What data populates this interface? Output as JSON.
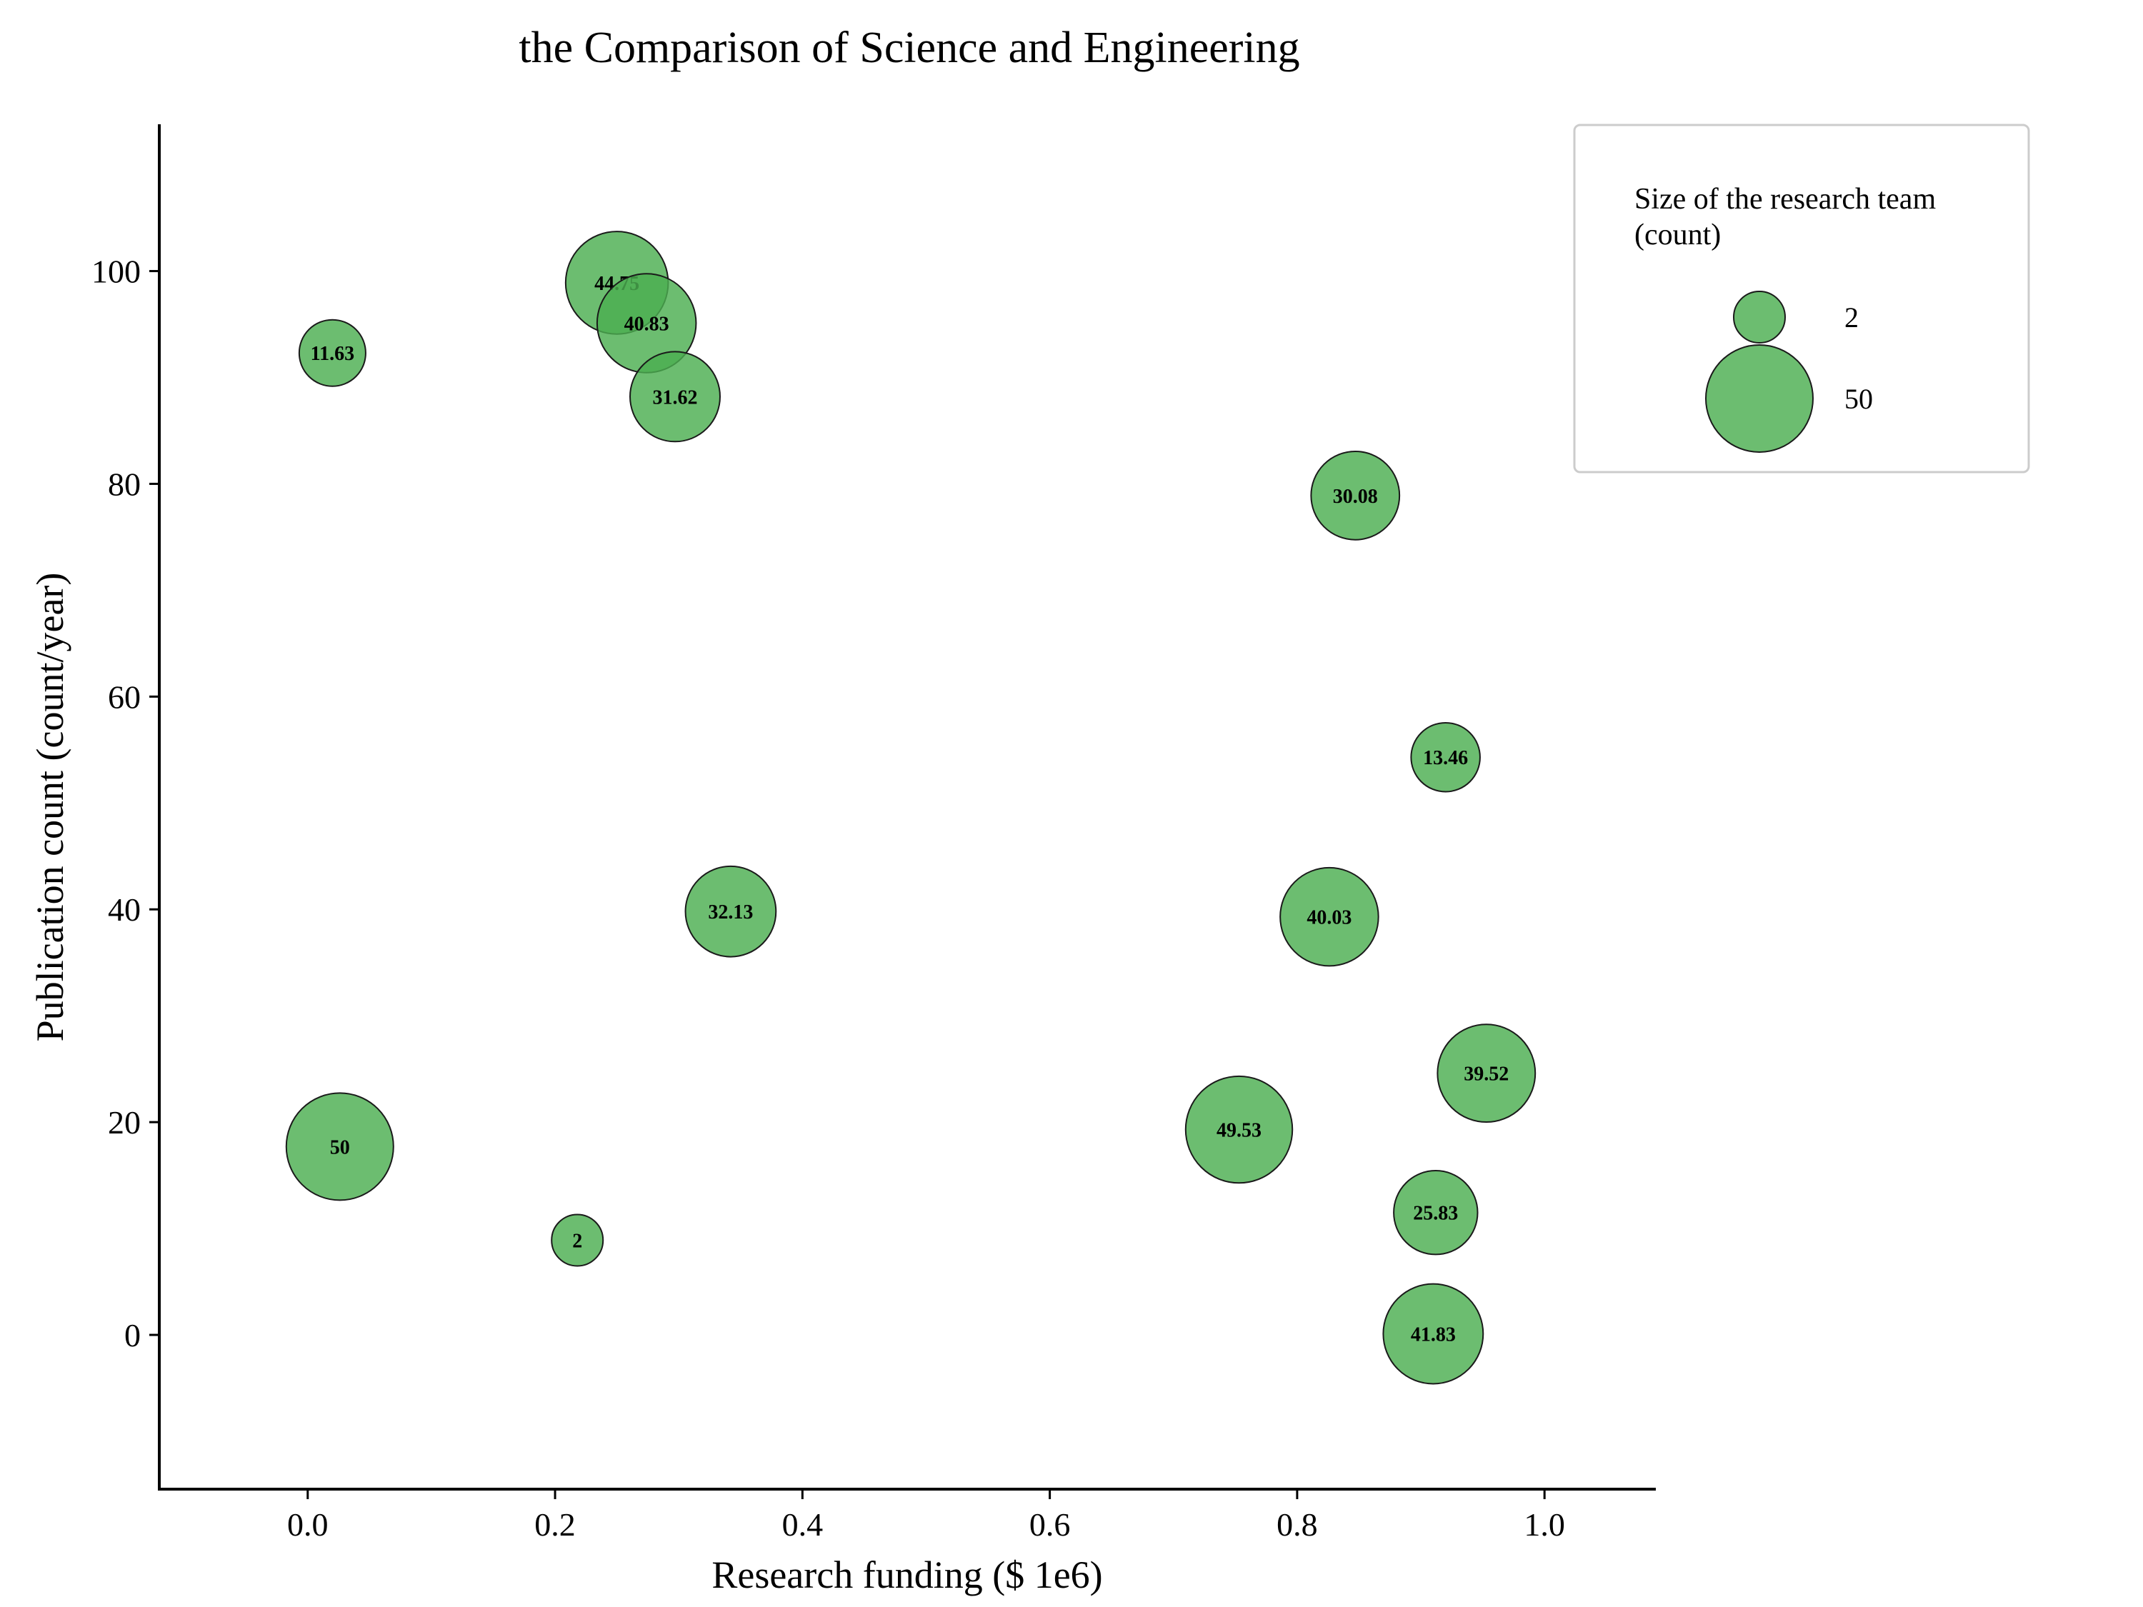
{
  "chart_data": {
    "type": "scatter",
    "title": "the Comparison of Science and Engineering",
    "xlabel": "Research funding ($ 1e6)",
    "ylabel": "Publication count (count/year)",
    "xlim": [
      -0.12,
      1.09
    ],
    "ylim": [
      -14.5,
      113.8
    ],
    "xticks": [
      "0.0",
      "0.2",
      "0.4",
      "0.6",
      "0.8",
      "1.0"
    ],
    "yticks": [
      "0",
      "20",
      "40",
      "60",
      "80",
      "100"
    ],
    "grid": false,
    "legend_position": "top-right",
    "legend": {
      "title": "Size of the research team\n(count)",
      "entries": [
        {
          "label": "2",
          "size": 2
        },
        {
          "label": "50",
          "size": 50
        }
      ]
    },
    "colors": {
      "marker_fill": "#4caf50",
      "marker_edge": "#1a1a1a"
    },
    "series": [
      {
        "points": [
          {
            "x": 0.02,
            "y": 92.3,
            "size": 11.63,
            "label": "11.63"
          },
          {
            "x": 0.25,
            "y": 98.9,
            "size": 44.75,
            "label": "44.75"
          },
          {
            "x": 0.274,
            "y": 95.1,
            "size": 40.83,
            "label": "40.83"
          },
          {
            "x": 0.297,
            "y": 88.2,
            "size": 31.62,
            "label": "31.62"
          },
          {
            "x": 0.847,
            "y": 78.9,
            "size": 30.08,
            "label": "30.08"
          },
          {
            "x": 0.92,
            "y": 54.3,
            "size": 13.46,
            "label": "13.46"
          },
          {
            "x": 0.342,
            "y": 39.8,
            "size": 32.13,
            "label": "32.13"
          },
          {
            "x": 0.826,
            "y": 39.3,
            "size": 40.03,
            "label": "40.03"
          },
          {
            "x": 0.953,
            "y": 24.6,
            "size": 39.52,
            "label": "39.52"
          },
          {
            "x": 0.753,
            "y": 19.3,
            "size": 49.53,
            "label": "49.53"
          },
          {
            "x": 0.026,
            "y": 17.7,
            "size": 50,
            "label": "50"
          },
          {
            "x": 0.912,
            "y": 11.5,
            "size": 25.83,
            "label": "25.83"
          },
          {
            "x": 0.218,
            "y": 8.9,
            "size": 2,
            "label": "2"
          },
          {
            "x": 0.91,
            "y": 0.1,
            "size": 41.83,
            "label": "41.83"
          }
        ]
      }
    ]
  }
}
